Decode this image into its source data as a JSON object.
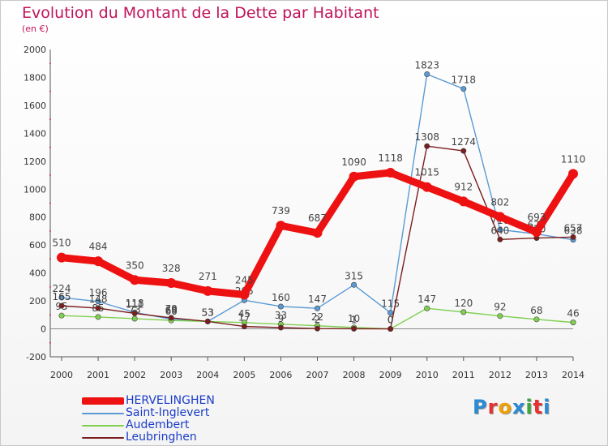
{
  "header": {
    "title": "Evolution du Montant de la Dette par Habitant",
    "subtitle": "(en €)"
  },
  "logo": {
    "text": "Proxiti",
    "colors": [
      "#2a8ad4",
      "#e83030",
      "#f0a000",
      "#2a8ad4",
      "#3aa83a",
      "#e83030",
      "#2a8ad4"
    ]
  },
  "chart_data": {
    "type": "line",
    "categories": [
      "2000",
      "2001",
      "2002",
      "2003",
      "2004",
      "2005",
      "2006",
      "2007",
      "2008",
      "2009",
      "2010",
      "2011",
      "2012",
      "2013",
      "2014"
    ],
    "ylim": [
      -200,
      2000
    ],
    "yticks": [
      "-200",
      "0",
      "200",
      "400",
      "600",
      "800",
      "1000",
      "1200",
      "1400",
      "1600",
      "1800",
      "2000"
    ],
    "grid": false,
    "legend_position": "bottom-left",
    "series": [
      {
        "name": "Saint-Inglevert",
        "color": "#5a9bd5",
        "values": [
          224,
          196,
          118,
          69,
          53,
          205,
          160,
          147,
          315,
          115,
          1823,
          1718,
          710,
          679,
          638
        ],
        "labels": [
          "224",
          "196",
          "118",
          "69",
          "53",
          "205",
          "160",
          "147",
          "315",
          "115",
          "1823",
          "1718",
          "710",
          "679",
          "638"
        ]
      },
      {
        "name": "Audembert",
        "color": "#80d050",
        "values": [
          95,
          85,
          73,
          60,
          53,
          45,
          33,
          22,
          10,
          0,
          147,
          120,
          92,
          68,
          46
        ],
        "labels": [
          "95",
          "85",
          "73",
          "60",
          "53",
          "45",
          "33",
          "22",
          "10",
          "0",
          "147",
          "120",
          "92",
          "68",
          "46"
        ]
      },
      {
        "name": "Leubringhen",
        "color": "#7a1e1e",
        "values": [
          165,
          148,
          111,
          79,
          53,
          17,
          9,
          2,
          1,
          0,
          1308,
          1274,
          640,
          650,
          657
        ],
        "labels": [
          "165",
          "148",
          "111",
          "79",
          "53",
          "17",
          "9",
          "2",
          "1",
          "0",
          "1308",
          "1274",
          "640",
          "650",
          "657"
        ]
      },
      {
        "name": "HERVELINGHEN",
        "color": "#ee1111",
        "values": [
          510,
          484,
          350,
          328,
          271,
          245,
          739,
          687,
          1090,
          1118,
          1015,
          912,
          802,
          693,
          1110
        ],
        "labels": [
          "510",
          "484",
          "350",
          "328",
          "271",
          "245",
          "739",
          "687",
          "1090",
          "1118",
          "1015",
          "912",
          "802",
          "693",
          "1110"
        ]
      }
    ]
  }
}
